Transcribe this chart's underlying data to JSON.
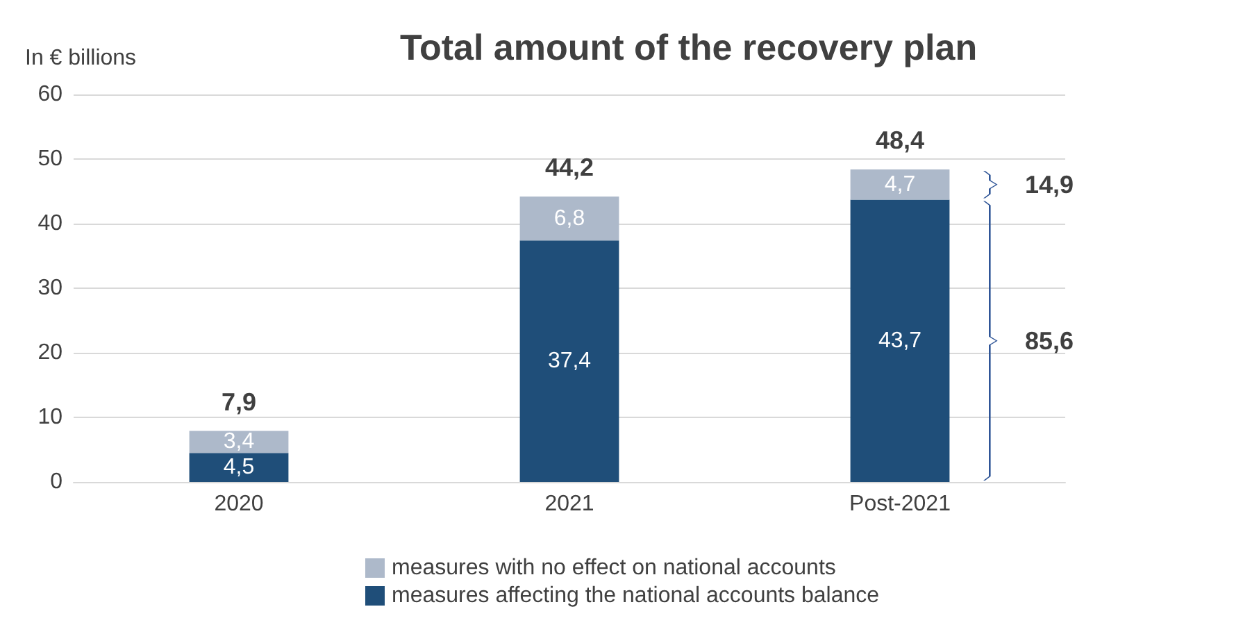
{
  "chart_data": {
    "type": "bar",
    "title": "Total amount of the recovery plan",
    "ylabel": "In € billions",
    "categories": [
      "2020",
      "2021",
      "Post-2021"
    ],
    "stacked": true,
    "series": [
      {
        "name": "measures affecting the national accounts balance",
        "color": "#1f4e79",
        "values": [
          4.5,
          37.4,
          43.7
        ],
        "value_labels": [
          "4,5",
          "37,4",
          "43,7"
        ]
      },
      {
        "name": "measures with no effect on national accounts",
        "color": "#adb9ca",
        "values": [
          3.4,
          6.8,
          4.7
        ],
        "value_labels": [
          "3,4",
          "6,8",
          "4,7"
        ]
      }
    ],
    "totals": [
      "7,9",
      "44,2",
      "48,4"
    ],
    "annotations": [
      "14,9",
      "85,6"
    ],
    "ylim": [
      0,
      60
    ],
    "yticks": [
      0,
      10,
      20,
      30,
      40,
      50,
      60
    ],
    "grid": "y",
    "legend": "bottom"
  }
}
